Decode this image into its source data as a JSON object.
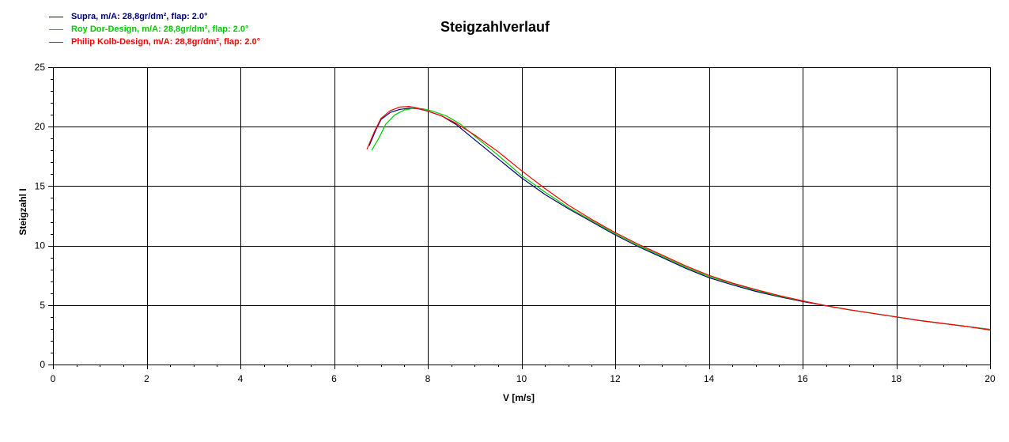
{
  "chart_data": {
    "type": "line",
    "title": "Steigzahlverlauf",
    "xlabel": "V [m/s]",
    "ylabel": "Steigzahl I",
    "xlim": [
      0,
      20
    ],
    "ylim": [
      0,
      25
    ],
    "x_ticks": [
      "0",
      "2",
      "4",
      "6",
      "8",
      "10",
      "12",
      "14",
      "16",
      "18",
      "20"
    ],
    "y_ticks": [
      "0",
      "5",
      "10",
      "15",
      "20",
      "25"
    ],
    "grid": true,
    "legend_position": "top-left",
    "series": [
      {
        "name": "Supra, m/A: 28,8gr/dm², flap: 2.0°",
        "color": "#000080",
        "points": [
          [
            6.75,
            18.4
          ],
          [
            6.9,
            19.8
          ],
          [
            7.0,
            20.6
          ],
          [
            7.2,
            21.2
          ],
          [
            7.4,
            21.45
          ],
          [
            7.6,
            21.55
          ],
          [
            7.8,
            21.5
          ],
          [
            8.0,
            21.3
          ],
          [
            8.3,
            20.9
          ],
          [
            8.6,
            20.2
          ],
          [
            9.0,
            18.9
          ],
          [
            9.5,
            17.3
          ],
          [
            10.0,
            15.7
          ],
          [
            10.5,
            14.3
          ],
          [
            11.0,
            13.1
          ],
          [
            11.5,
            12.0
          ],
          [
            12.0,
            10.9
          ],
          [
            12.5,
            9.9
          ],
          [
            13.0,
            9.0
          ],
          [
            13.5,
            8.1
          ],
          [
            14.0,
            7.3
          ],
          [
            14.5,
            6.7
          ],
          [
            15.0,
            6.15
          ],
          [
            15.5,
            5.7
          ],
          [
            16.0,
            5.3
          ],
          [
            16.5,
            4.95
          ],
          [
            17.0,
            4.6
          ],
          [
            17.5,
            4.3
          ],
          [
            18.0,
            4.0
          ],
          [
            18.5,
            3.7
          ],
          [
            19.0,
            3.45
          ],
          [
            19.5,
            3.2
          ],
          [
            20.0,
            2.95
          ]
        ]
      },
      {
        "name": "Roy Dor-Design, m/A: 28,8gr/dm², flap: 2.0°",
        "color": "#00cc00",
        "points": [
          [
            6.8,
            18.0
          ],
          [
            6.95,
            19.0
          ],
          [
            7.1,
            20.2
          ],
          [
            7.3,
            21.0
          ],
          [
            7.5,
            21.4
          ],
          [
            7.7,
            21.55
          ],
          [
            7.9,
            21.5
          ],
          [
            8.1,
            21.3
          ],
          [
            8.4,
            20.9
          ],
          [
            8.7,
            20.2
          ],
          [
            9.0,
            19.2
          ],
          [
            9.5,
            17.6
          ],
          [
            10.0,
            15.9
          ],
          [
            10.5,
            14.5
          ],
          [
            11.0,
            13.2
          ],
          [
            11.5,
            12.1
          ],
          [
            12.0,
            11.0
          ],
          [
            12.5,
            10.0
          ],
          [
            13.0,
            9.1
          ],
          [
            13.5,
            8.2
          ],
          [
            14.0,
            7.4
          ],
          [
            14.5,
            6.8
          ],
          [
            15.0,
            6.25
          ],
          [
            15.5,
            5.75
          ],
          [
            16.0,
            5.35
          ],
          [
            16.5,
            4.95
          ],
          [
            17.0,
            4.6
          ],
          [
            17.5,
            4.3
          ],
          [
            18.0,
            4.0
          ],
          [
            18.5,
            3.7
          ],
          [
            19.0,
            3.45
          ],
          [
            19.5,
            3.2
          ],
          [
            20.0,
            2.95
          ]
        ]
      },
      {
        "name": "Philip Kolb-Design, m/A: 28,8gr/dm², flap: 2.0°",
        "color": "#ff0000",
        "points": [
          [
            6.7,
            18.1
          ],
          [
            6.85,
            19.5
          ],
          [
            7.0,
            20.7
          ],
          [
            7.2,
            21.35
          ],
          [
            7.4,
            21.65
          ],
          [
            7.6,
            21.7
          ],
          [
            7.8,
            21.55
          ],
          [
            8.0,
            21.3
          ],
          [
            8.3,
            20.9
          ],
          [
            8.6,
            20.3
          ],
          [
            9.0,
            19.3
          ],
          [
            9.5,
            17.9
          ],
          [
            10.0,
            16.3
          ],
          [
            10.5,
            14.8
          ],
          [
            11.0,
            13.4
          ],
          [
            11.5,
            12.2
          ],
          [
            12.0,
            11.1
          ],
          [
            12.5,
            10.1
          ],
          [
            13.0,
            9.2
          ],
          [
            13.5,
            8.3
          ],
          [
            14.0,
            7.5
          ],
          [
            14.5,
            6.85
          ],
          [
            15.0,
            6.3
          ],
          [
            15.5,
            5.8
          ],
          [
            16.0,
            5.35
          ],
          [
            16.5,
            4.95
          ],
          [
            17.0,
            4.6
          ],
          [
            17.5,
            4.3
          ],
          [
            18.0,
            4.0
          ],
          [
            18.5,
            3.7
          ],
          [
            19.0,
            3.45
          ],
          [
            19.5,
            3.2
          ],
          [
            20.0,
            2.9
          ]
        ]
      }
    ]
  }
}
